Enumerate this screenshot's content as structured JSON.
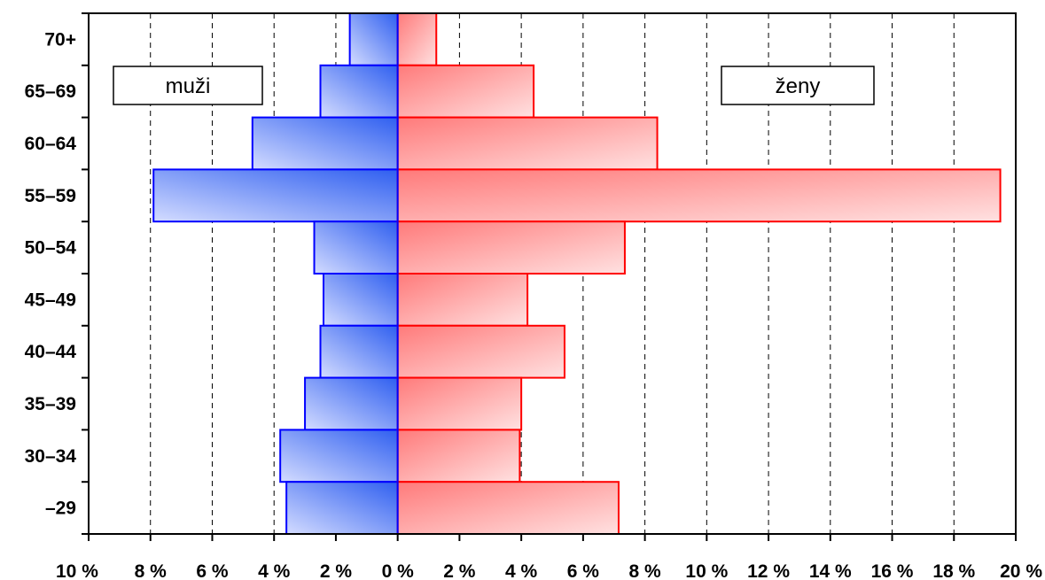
{
  "chart_data": {
    "type": "bar",
    "orientation": "horizontal",
    "categories": [
      "70+",
      "65–69",
      "60–64",
      "55–59",
      "50–54",
      "45–49",
      "40–44",
      "35–39",
      "30–34",
      "–29"
    ],
    "series": [
      {
        "name": "muži",
        "side": "left",
        "color": "#0000ff",
        "values": [
          1.55,
          2.5,
          4.7,
          7.9,
          2.7,
          2.4,
          2.5,
          3.0,
          3.8,
          3.6
        ]
      },
      {
        "name": "ženy",
        "side": "right",
        "color": "#ff0000",
        "values": [
          1.25,
          4.4,
          8.4,
          19.5,
          7.35,
          4.2,
          5.4,
          4.0,
          3.95,
          7.15
        ]
      }
    ],
    "x_ticks": [
      {
        "value": -10,
        "label": "10 %"
      },
      {
        "value": -8,
        "label": "8 %"
      },
      {
        "value": -6,
        "label": "6 %"
      },
      {
        "value": -4,
        "label": "4 %"
      },
      {
        "value": -2,
        "label": "2 %"
      },
      {
        "value": 0,
        "label": "0 %"
      },
      {
        "value": 2,
        "label": "2 %"
      },
      {
        "value": 4,
        "label": "4 %"
      },
      {
        "value": 6,
        "label": "6 %"
      },
      {
        "value": 8,
        "label": "8 %"
      },
      {
        "value": 10,
        "label": "10 %"
      },
      {
        "value": 12,
        "label": "12 %"
      },
      {
        "value": 14,
        "label": "14 %"
      },
      {
        "value": 16,
        "label": "16 %"
      },
      {
        "value": 18,
        "label": "18 %"
      },
      {
        "value": 20,
        "label": "20 %"
      }
    ],
    "xlim": [
      -10,
      20
    ],
    "grid": "vertical dashed",
    "legend": {
      "muzi_label": "muži",
      "zeny_label": "ženy",
      "muzi_position": "top-left",
      "zeny_position": "top-right"
    }
  }
}
